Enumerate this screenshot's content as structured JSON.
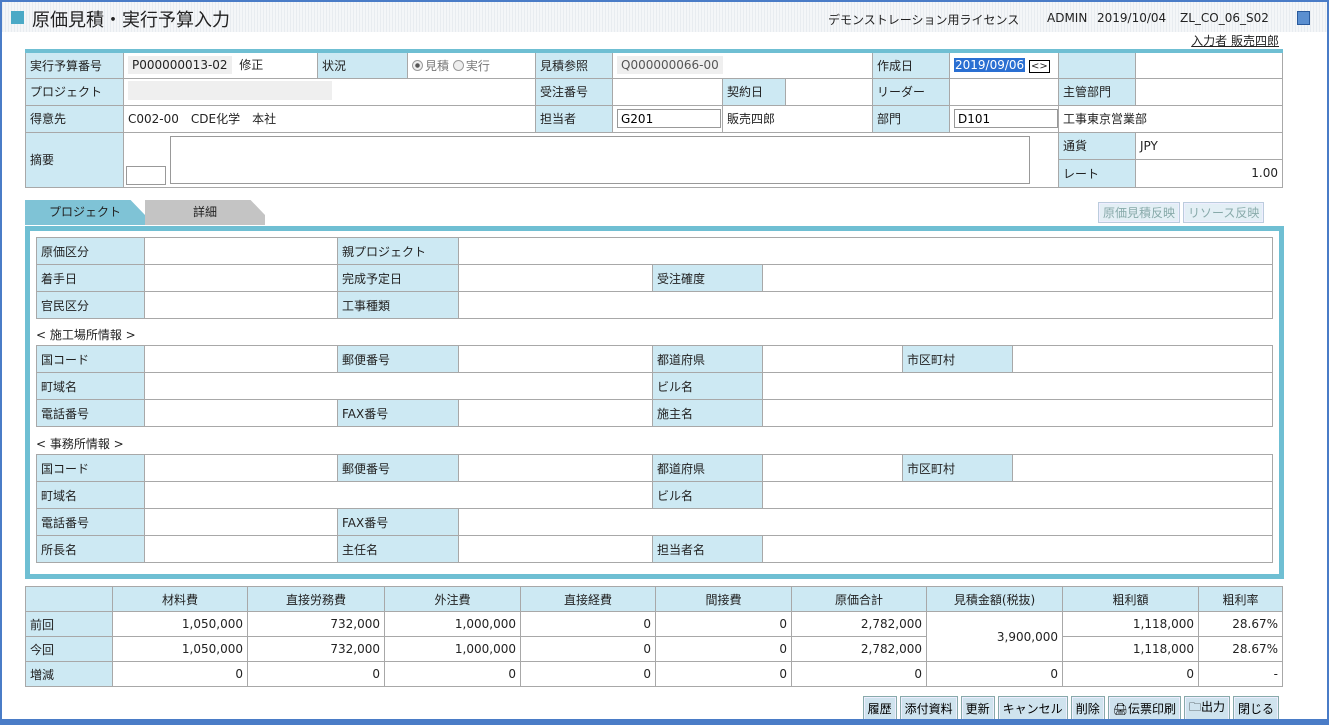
{
  "header": {
    "title": "原価見積・実行予算入力",
    "license": "デモンストレーション用ライセンス",
    "user_id": "ADMIN",
    "date": "2019/10/04",
    "screen_id": "ZL_CO_06_S02",
    "entered_by": "入力者 販売四郎"
  },
  "form": {
    "budget_no_label": "実行予算番号",
    "budget_no": "P000000013-02",
    "revision": "修正",
    "status_label": "状況",
    "status_options": [
      "見積",
      "実行"
    ],
    "status_selected": "見積",
    "estimate_ref_label": "見積参照",
    "estimate_ref": "Q000000066-00",
    "created_label": "作成日",
    "created": "2019/09/06",
    "project_label": "プロジェクト",
    "order_no_label": "受注番号",
    "contract_date_label": "契約日",
    "leader_label": "リーダー",
    "main_dept_label": "主管部門",
    "customer_label": "得意先",
    "customer": "C002-00　CDE化学　本社",
    "staff_label": "担当者",
    "staff_code": "G201",
    "staff_name": "販売四郎",
    "dept_label": "部門",
    "dept_code": "D101",
    "dept_name": "工事東京営業部",
    "summary_label": "摘要",
    "currency_label": "通貨",
    "currency": "JPY",
    "rate_label": "レート",
    "rate": "1.00"
  },
  "tabs": [
    {
      "label": "プロジェクト",
      "active": true
    },
    {
      "label": "詳細",
      "active": false
    }
  ],
  "actions": {
    "reflect_cost": "原価見積反映",
    "reflect_resource": "リソース反映"
  },
  "project": {
    "cost_type": "原価区分",
    "parent_project": "親プロジェクト",
    "start_date": "着手日",
    "completion_date": "完成予定日",
    "order_certainty": "受注確度",
    "public_private": "官民区分",
    "work_type": "工事種類"
  },
  "site": {
    "heading": "< 施工場所情報 >",
    "country": "国コード",
    "postal": "郵便番号",
    "prefecture": "都道府県",
    "city": "市区町村",
    "town": "町域名",
    "building": "ビル名",
    "phone": "電話番号",
    "fax": "FAX番号",
    "owner": "施主名"
  },
  "office": {
    "heading": "< 事務所情報 >",
    "country": "国コード",
    "postal": "郵便番号",
    "prefecture": "都道府県",
    "city": "市区町村",
    "town": "町域名",
    "building": "ビル名",
    "phone": "電話番号",
    "fax": "FAX番号",
    "director": "所長名",
    "chief": "主任名",
    "person": "担当者名"
  },
  "cost": {
    "headers": [
      "材料費",
      "直接労務費",
      "外注費",
      "直接経費",
      "間接費",
      "原価合計",
      "見積金額(税抜)",
      "粗利額",
      "粗利率"
    ],
    "rows": [
      {
        "label": "前回",
        "values": [
          "1,050,000",
          "732,000",
          "1,000,000",
          "0",
          "0",
          "2,782,000",
          "1,118,000",
          "28.67%"
        ]
      },
      {
        "label": "今回",
        "values": [
          "1,050,000",
          "732,000",
          "1,000,000",
          "0",
          "0",
          "2,782,000",
          "1,118,000",
          "28.67%"
        ]
      },
      {
        "label": "増減",
        "values": [
          "0",
          "0",
          "0",
          "0",
          "0",
          "0",
          "0",
          "0",
          "-"
        ]
      }
    ],
    "estimate_amount": "3,900,000"
  },
  "buttons": [
    "履歴",
    "添付資料",
    "更新",
    "キャンセル",
    "削除",
    "伝票印刷",
    "出力",
    "閉じる"
  ],
  "colors": {
    "accent": "#6fbfd3",
    "label_bg": "#cde9f3",
    "frame": "#4a7cc7"
  }
}
